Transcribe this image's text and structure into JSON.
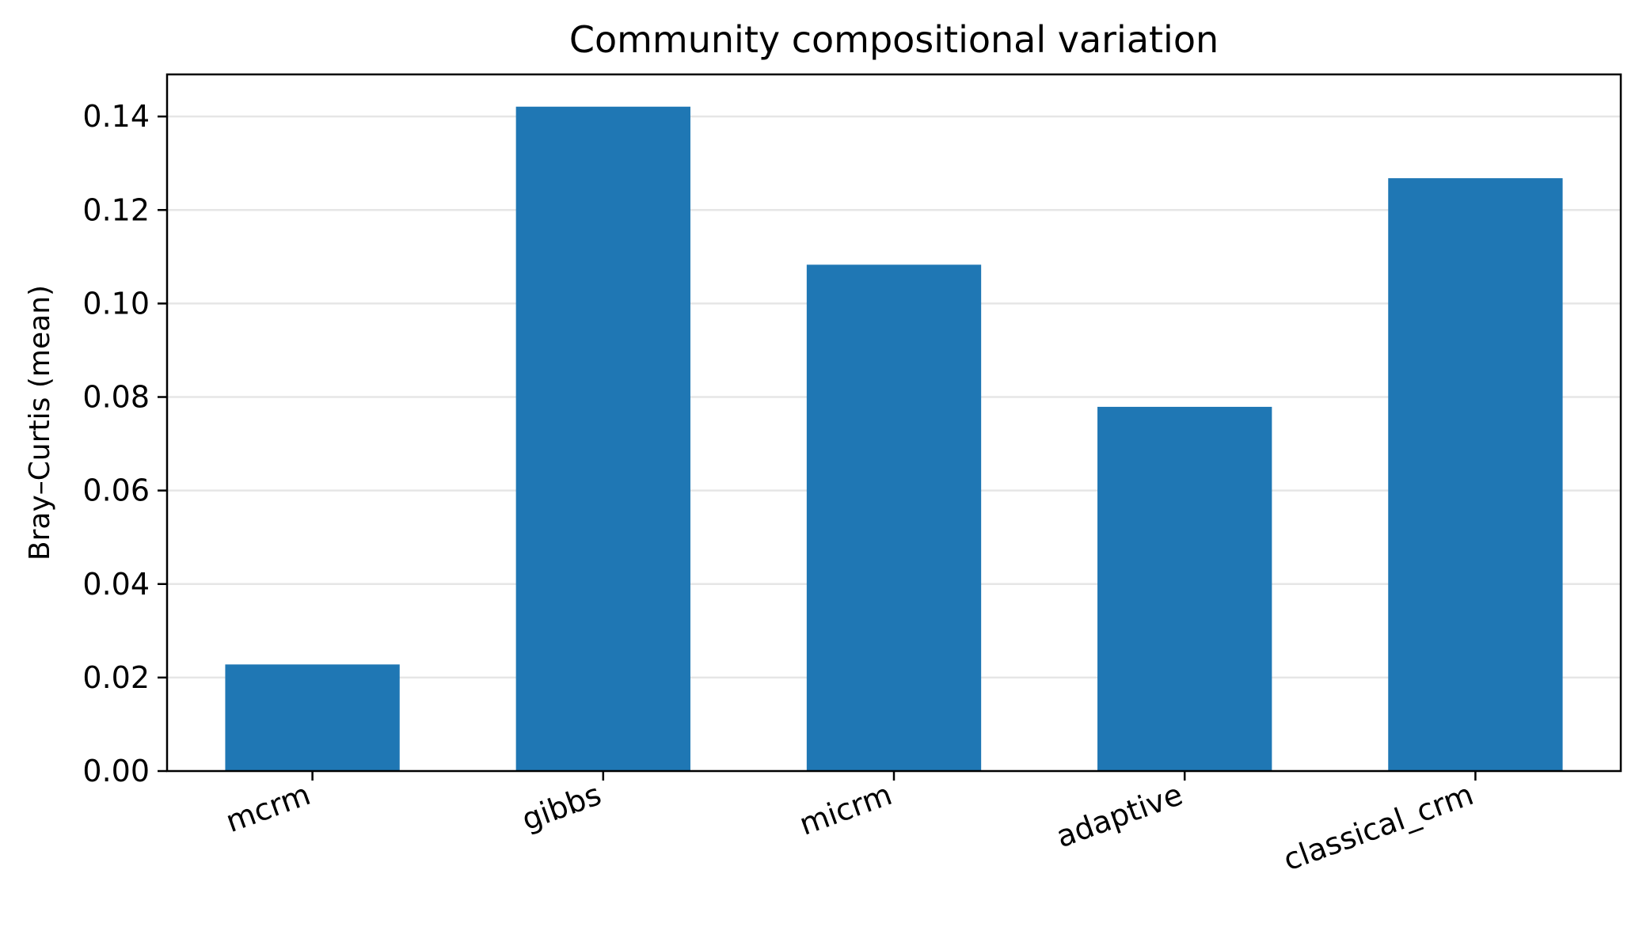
{
  "chart_data": {
    "type": "bar",
    "title": "Community compositional variation",
    "xlabel": "",
    "ylabel": "Bray–Curtis (mean)",
    "categories": [
      "mcrm",
      "gibbs",
      "micrm",
      "adaptive",
      "classical_crm"
    ],
    "values": [
      0.0228,
      0.1421,
      0.1083,
      0.0779,
      0.1268
    ],
    "ylim": [
      0,
      0.149
    ],
    "yticks": [
      "0.00",
      "0.02",
      "0.04",
      "0.06",
      "0.08",
      "0.10",
      "0.12",
      "0.14"
    ],
    "ytick_values": [
      0,
      0.02,
      0.04,
      0.06,
      0.08,
      0.1,
      0.12,
      0.14
    ],
    "grid": "y",
    "legend": "none",
    "bar_color": "#1f77b4",
    "grid_color": "#e6e6e6"
  }
}
